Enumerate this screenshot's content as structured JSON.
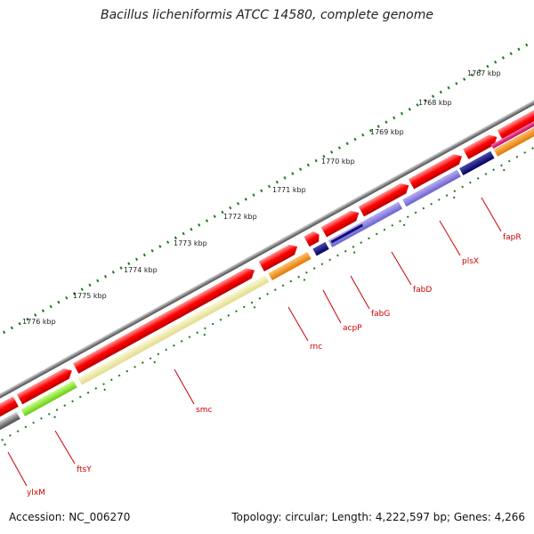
{
  "title": "Bacillus licheniformis ATCC 14580, complete genome",
  "accession": "Accession: NC_006270",
  "topology": "Topology: circular; Length: 4,222,597 bp; Genes: 4,266",
  "ticks": [
    "1767 kbp",
    "1768 kbp",
    "1769 kbp",
    "1770 kbp",
    "1771 kbp",
    "1772 kbp",
    "1773 kbp",
    "1774 kbp",
    "1775 kbp",
    "1776 kbp"
  ],
  "genes": [
    "fapR",
    "plsX",
    "fabD",
    "fabG",
    "acpP",
    "rnc",
    "smc",
    "ftsY",
    "ylxM"
  ],
  "colors": {
    "red": "#ff0000",
    "backbone": "#7a7a7a",
    "green": "#1a7a1a",
    "navy": "#10107a",
    "violet": "#7b6fd6",
    "orange": "#ff8c00",
    "lime": "#99ee33",
    "khaki": "#eeeaa0",
    "magenta": "#e0147a",
    "label": "#cc0000"
  }
}
